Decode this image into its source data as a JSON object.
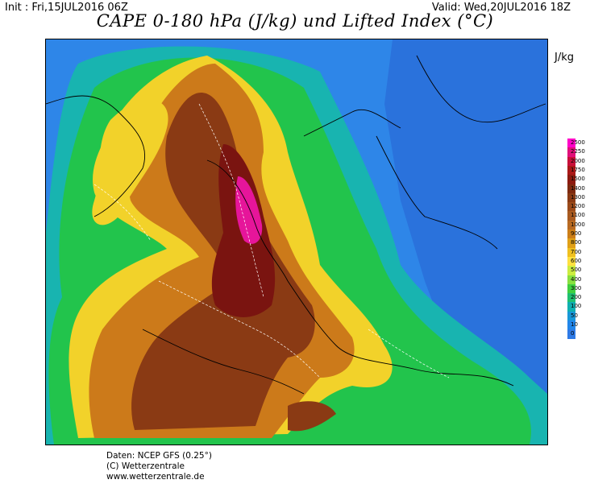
{
  "header": {
    "init": "Init : Fri,15JUL2016 06Z",
    "valid": "Valid: Wed,20JUL2016 18Z"
  },
  "title": "CAPE 0-180 hPa (J/kg) und Lifted Index (°C)",
  "colorbar": {
    "unit": "J/kg",
    "levels": [
      "2500",
      "2250",
      "2000",
      "1750",
      "1500",
      "1400",
      "1300",
      "1200",
      "1100",
      "1000",
      "900",
      "800",
      "700",
      "600",
      "500",
      "400",
      "300",
      "200",
      "100",
      "50",
      "10",
      "0"
    ],
    "colors": [
      "#ff00c8",
      "#e0107a",
      "#c8103a",
      "#aa1818",
      "#8c1a10",
      "#7e2a10",
      "#8a3a14",
      "#9a4a1a",
      "#a85a20",
      "#b86a22",
      "#cc7e18",
      "#e0a018",
      "#f0c020",
      "#ffe040",
      "#ccec40",
      "#88e040",
      "#40d040",
      "#20c070",
      "#10b0b0",
      "#1898d8",
      "#2286ea",
      "#2e7ae6"
    ]
  },
  "map": {
    "background": "#2e86e8",
    "fields": [
      {
        "level": "green",
        "color": "#22c44c"
      },
      {
        "level": "yellow",
        "color": "#f2d22a"
      },
      {
        "level": "orange",
        "color": "#cc7a1a"
      },
      {
        "level": "brown",
        "color": "#8a3a14"
      },
      {
        "level": "dark-red",
        "color": "#7a1410"
      },
      {
        "level": "magenta",
        "color": "#e6159a"
      }
    ]
  },
  "footer": {
    "source": "Daten: NCEP GFS (0.25°)",
    "copyright": "(C) Wetterzentrale",
    "website": "www.wetterzentrale.de"
  }
}
